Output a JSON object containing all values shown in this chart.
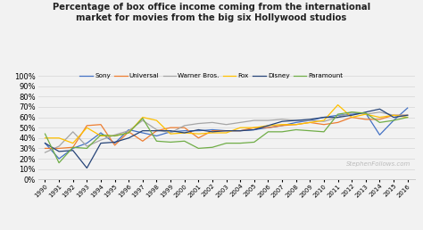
{
  "title": "Percentage of box office income coming from the international\nmarket for movies from the big six Hollywood studios",
  "years": [
    1990,
    1991,
    1992,
    1993,
    1994,
    1995,
    1996,
    1997,
    1998,
    1999,
    2000,
    2001,
    2002,
    2003,
    2004,
    2005,
    2006,
    2007,
    2008,
    2009,
    2010,
    2011,
    2012,
    2013,
    2014,
    2015,
    2016
  ],
  "studios": {
    "Sony": [
      35,
      20,
      30,
      35,
      45,
      35,
      48,
      45,
      42,
      46,
      47,
      47,
      48,
      47,
      47,
      48,
      50,
      52,
      55,
      57,
      60,
      62,
      63,
      64,
      43,
      57,
      69
    ],
    "Universal": [
      30,
      30,
      31,
      52,
      53,
      33,
      46,
      37,
      47,
      50,
      50,
      40,
      47,
      47,
      47,
      50,
      50,
      52,
      53,
      55,
      53,
      55,
      60,
      58,
      58,
      62,
      62
    ],
    "Warner Bros.": [
      26,
      32,
      46,
      32,
      38,
      43,
      47,
      57,
      48,
      45,
      52,
      54,
      55,
      53,
      55,
      57,
      57,
      58,
      57,
      57,
      56,
      60,
      65,
      63,
      65,
      62,
      62
    ],
    "Fox": [
      40,
      40,
      35,
      50,
      42,
      42,
      45,
      60,
      57,
      44,
      45,
      44,
      45,
      45,
      50,
      50,
      52,
      53,
      53,
      55,
      57,
      72,
      60,
      63,
      60,
      62,
      60
    ],
    "Disney": [
      35,
      27,
      28,
      11,
      35,
      36,
      40,
      47,
      47,
      47,
      45,
      48,
      46,
      47,
      47,
      48,
      52,
      56,
      57,
      58,
      60,
      60,
      62,
      65,
      68,
      60,
      62
    ],
    "Paramount": [
      44,
      16,
      31,
      30,
      43,
      42,
      45,
      59,
      37,
      36,
      37,
      30,
      31,
      35,
      35,
      36,
      46,
      46,
      48,
      47,
      46,
      63,
      65,
      64,
      55,
      57,
      60
    ]
  },
  "colors": {
    "Sony": "#4472C4",
    "Universal": "#ED7D31",
    "Warner Bros.": "#A5A5A5",
    "Fox": "#FFC000",
    "Disney": "#264478",
    "Paramount": "#70AD47"
  },
  "ylim": [
    0,
    100
  ],
  "yticks": [
    0,
    10,
    20,
    30,
    40,
    50,
    60,
    70,
    80,
    90,
    100
  ],
  "watermark": "StephenFollows.com",
  "bg_color": "#F2F2F2",
  "plot_bg_color": "#F2F2F2"
}
